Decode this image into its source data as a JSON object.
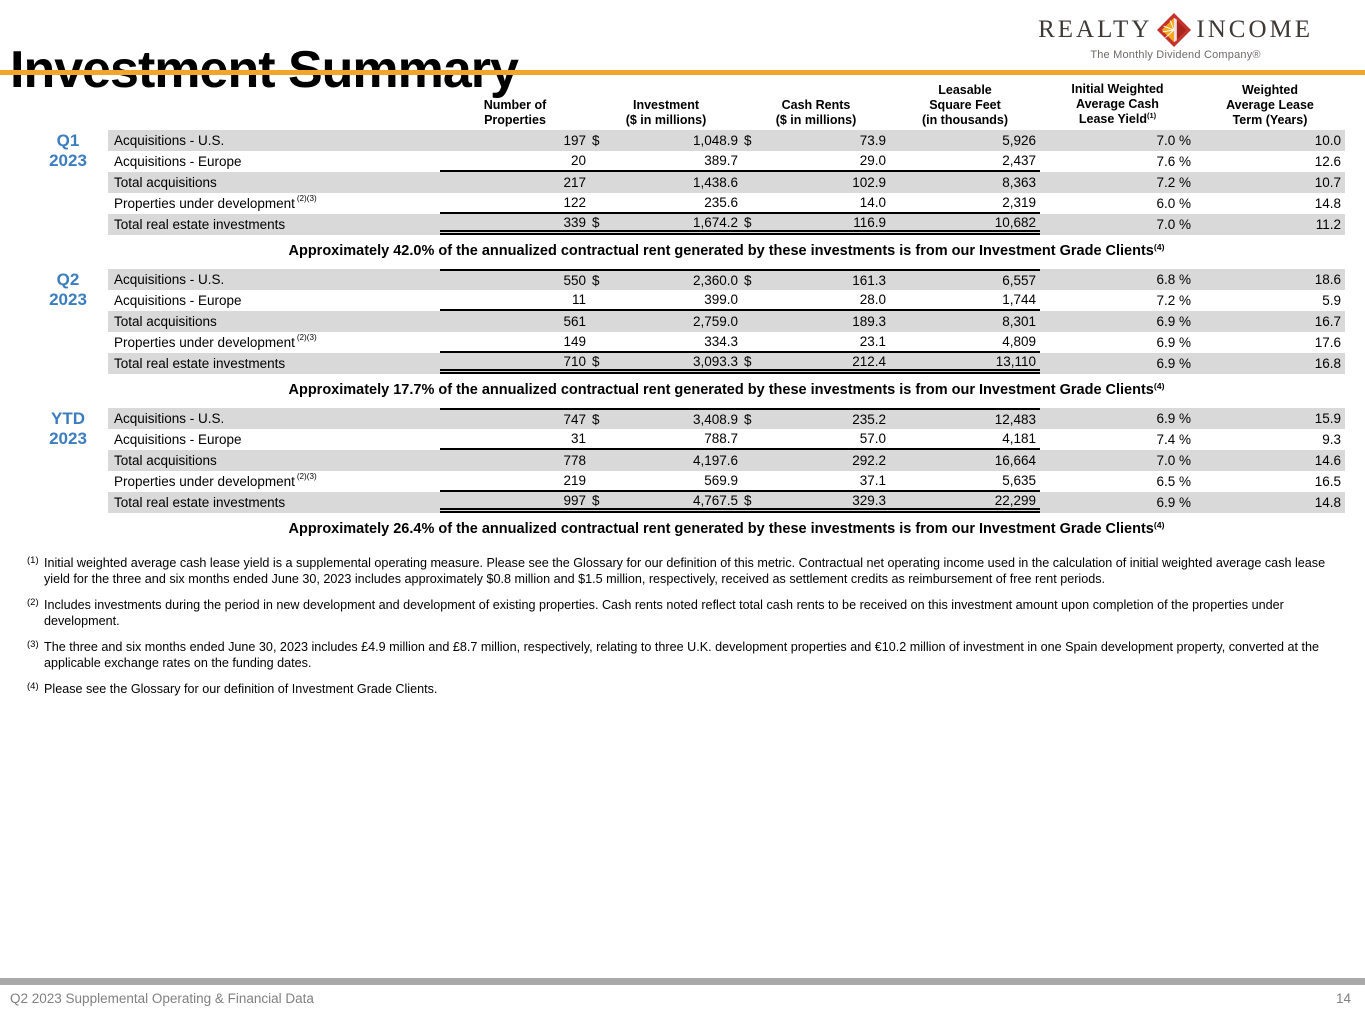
{
  "header": {
    "title": "Investment Summary"
  },
  "logo": {
    "word1": "REALTY",
    "word2": "INCOME",
    "tagline": "The Monthly Dividend Company®"
  },
  "colors": {
    "accent_orange": "#F2A52B",
    "period_blue": "#3B7DBF",
    "row_shade": "#D9D9D9",
    "footer_gray": "#A9A9A9",
    "logo_red": "#C4322C",
    "logo_gold": "#F5A81C"
  },
  "table": {
    "headers": [
      {
        "lines": [
          "Number of",
          "Properties"
        ],
        "sup": ""
      },
      {
        "lines": [
          "Investment",
          "($ in millions)"
        ],
        "sup": ""
      },
      {
        "lines": [
          "Cash Rents",
          "($ in millions)"
        ],
        "sup": ""
      },
      {
        "lines": [
          "Leasable",
          "Square Feet",
          "(in thousands)"
        ],
        "sup": ""
      },
      {
        "lines": [
          "Initial Weighted",
          "Average Cash",
          "Lease Yield"
        ],
        "sup": "(1)"
      },
      {
        "lines": [
          "Weighted",
          "Average Lease",
          "Term (Years)"
        ],
        "sup": ""
      }
    ],
    "sections": [
      {
        "id": "q1-2023",
        "period": [
          "Q1",
          "2023"
        ],
        "rows": [
          {
            "label": "Acquisitions - U.S.",
            "label_sup": "",
            "cells": [
              "197",
              "$",
              "1,048.9",
              "$",
              "73.9",
              "5,926",
              "7.0 %",
              "10.0"
            ]
          },
          {
            "label": "Acquisitions - Europe",
            "label_sup": "",
            "cells": [
              "20",
              "",
              "389.7",
              "",
              "29.0",
              "2,437",
              "7.6 %",
              "12.6"
            ]
          },
          {
            "label": "Total acquisitions",
            "label_sup": "",
            "cells": [
              "217",
              "",
              "1,438.6",
              "",
              "102.9",
              "8,363",
              "7.2 %",
              "10.7"
            ]
          },
          {
            "label": "Properties under development",
            "label_sup": "(2)(3)",
            "cells": [
              "122",
              "",
              "235.6",
              "",
              "14.0",
              "2,319",
              "6.0 %",
              "14.8"
            ]
          },
          {
            "label": "Total real estate investments",
            "label_sup": "",
            "cells": [
              "339",
              "$",
              "1,674.2",
              "$",
              "116.9",
              "10,682",
              "7.0 %",
              "11.2"
            ]
          }
        ],
        "note": "Approximately 42.0% of the annualized contractual rent generated by these investments is from our Investment Grade Clients",
        "note_sup": "(4)"
      },
      {
        "id": "q2-2023",
        "period": [
          "Q2",
          "2023"
        ],
        "rows": [
          {
            "label": "Acquisitions - U.S.",
            "label_sup": "",
            "cells": [
              "550",
              "$",
              "2,360.0",
              "$",
              "161.3",
              "6,557",
              "6.8 %",
              "18.6"
            ]
          },
          {
            "label": "Acquisitions - Europe",
            "label_sup": "",
            "cells": [
              "11",
              "",
              "399.0",
              "",
              "28.0",
              "1,744",
              "7.2 %",
              "5.9"
            ]
          },
          {
            "label": "Total acquisitions",
            "label_sup": "",
            "cells": [
              "561",
              "",
              "2,759.0",
              "",
              "189.3",
              "8,301",
              "6.9 %",
              "16.7"
            ]
          },
          {
            "label": "Properties under development",
            "label_sup": "(2)(3)",
            "cells": [
              "149",
              "",
              "334.3",
              "",
              "23.1",
              "4,809",
              "6.9 %",
              "17.6"
            ]
          },
          {
            "label": "Total real estate investments",
            "label_sup": "",
            "cells": [
              "710",
              "$",
              "3,093.3",
              "$",
              "212.4",
              "13,110",
              "6.9 %",
              "16.8"
            ]
          }
        ],
        "note": "Approximately 17.7% of the annualized contractual rent generated by these investments is from our Investment Grade Clients",
        "note_sup": "(4)"
      },
      {
        "id": "ytd-2023",
        "period": [
          "YTD",
          "2023"
        ],
        "rows": [
          {
            "label": "Acquisitions - U.S.",
            "label_sup": "",
            "cells": [
              "747",
              "$",
              "3,408.9",
              "$",
              "235.2",
              "12,483",
              "6.9 %",
              "15.9"
            ]
          },
          {
            "label": "Acquisitions - Europe",
            "label_sup": "",
            "cells": [
              "31",
              "",
              "788.7",
              "",
              "57.0",
              "4,181",
              "7.4 %",
              "9.3"
            ]
          },
          {
            "label": "Total acquisitions",
            "label_sup": "",
            "cells": [
              "778",
              "",
              "4,197.6",
              "",
              "292.2",
              "16,664",
              "7.0 %",
              "14.6"
            ]
          },
          {
            "label": "Properties under development",
            "label_sup": "(2)(3)",
            "cells": [
              "219",
              "",
              "569.9",
              "",
              "37.1",
              "5,635",
              "6.5 %",
              "16.5"
            ]
          },
          {
            "label": "Total real estate investments",
            "label_sup": "",
            "cells": [
              "997",
              "$",
              "4,767.5",
              "$",
              "329.3",
              "22,299",
              "6.9 %",
              "14.8"
            ]
          }
        ],
        "note": "Approximately 26.4% of the annualized contractual rent generated by these investments is from our Investment Grade Clients",
        "note_sup": "(4)"
      }
    ]
  },
  "footnotes": [
    {
      "sup": "(1)",
      "text": "Initial weighted average cash lease yield is a supplemental operating measure. Please see the Glossary for our definition of this metric. Contractual net operating income used in the calculation of initial weighted average cash lease yield for the three and six months ended June 30, 2023 includes approximately $0.8 million and $1.5 million, respectively, received as settlement credits as reimbursement of free rent periods."
    },
    {
      "sup": "(2)",
      "text": "Includes investments during the period in new development and development of existing properties. Cash rents noted reflect total cash rents to be received on this investment amount upon completion of the properties under development."
    },
    {
      "sup": "(3)",
      "text": "The three and six months ended June 30, 2023 includes £4.9 million and £8.7 million, respectively, relating to three U.K. development properties and €10.2 million of investment in one Spain development property, converted at the applicable exchange rates on the funding dates."
    },
    {
      "sup": "(4)",
      "text": "Please see the Glossary for our definition of Investment Grade Clients."
    }
  ],
  "footer": {
    "left": "Q2 2023 Supplemental Operating & Financial Data",
    "page_number": "14"
  }
}
